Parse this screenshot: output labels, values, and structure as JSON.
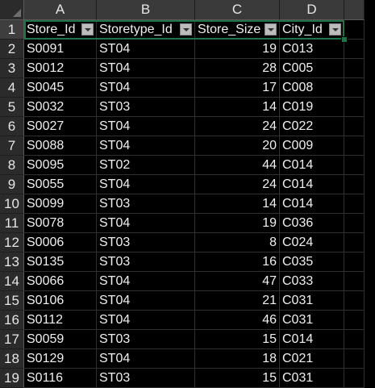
{
  "columns": [
    "A",
    "B",
    "C",
    "D"
  ],
  "header_row": {
    "row_number": "1",
    "cells": [
      "Store_Id",
      "Storetype_Id",
      "Store_Size",
      "City_Id"
    ]
  },
  "rows": [
    {
      "n": "2",
      "store_id": "S0091",
      "storetype_id": "ST04",
      "store_size": "19",
      "city_id": "C013"
    },
    {
      "n": "3",
      "store_id": "S0012",
      "storetype_id": "ST04",
      "store_size": "28",
      "city_id": "C005"
    },
    {
      "n": "4",
      "store_id": "S0045",
      "storetype_id": "ST04",
      "store_size": "17",
      "city_id": "C008"
    },
    {
      "n": "5",
      "store_id": "S0032",
      "storetype_id": "ST03",
      "store_size": "14",
      "city_id": "C019"
    },
    {
      "n": "6",
      "store_id": "S0027",
      "storetype_id": "ST04",
      "store_size": "24",
      "city_id": "C022"
    },
    {
      "n": "7",
      "store_id": "S0088",
      "storetype_id": "ST04",
      "store_size": "20",
      "city_id": "C009"
    },
    {
      "n": "8",
      "store_id": "S0095",
      "storetype_id": "ST02",
      "store_size": "44",
      "city_id": "C014"
    },
    {
      "n": "9",
      "store_id": "S0055",
      "storetype_id": "ST04",
      "store_size": "24",
      "city_id": "C014"
    },
    {
      "n": "10",
      "store_id": "S0099",
      "storetype_id": "ST03",
      "store_size": "14",
      "city_id": "C014"
    },
    {
      "n": "11",
      "store_id": "S0078",
      "storetype_id": "ST04",
      "store_size": "19",
      "city_id": "C036"
    },
    {
      "n": "12",
      "store_id": "S0006",
      "storetype_id": "ST03",
      "store_size": "8",
      "city_id": "C024"
    },
    {
      "n": "13",
      "store_id": "S0135",
      "storetype_id": "ST03",
      "store_size": "16",
      "city_id": "C035"
    },
    {
      "n": "14",
      "store_id": "S0066",
      "storetype_id": "ST04",
      "store_size": "47",
      "city_id": "C033"
    },
    {
      "n": "15",
      "store_id": "S0106",
      "storetype_id": "ST04",
      "store_size": "21",
      "city_id": "C031"
    },
    {
      "n": "16",
      "store_id": "S0112",
      "storetype_id": "ST04",
      "store_size": "46",
      "city_id": "C031"
    },
    {
      "n": "17",
      "store_id": "S0059",
      "storetype_id": "ST03",
      "store_size": "15",
      "city_id": "C014"
    },
    {
      "n": "18",
      "store_id": "S0129",
      "storetype_id": "ST04",
      "store_size": "18",
      "city_id": "C021"
    },
    {
      "n": "19",
      "store_id": "S0116",
      "storetype_id": "ST03",
      "store_size": "15",
      "city_id": "C031"
    }
  ],
  "colors": {
    "selection": "#217346",
    "background": "#000000",
    "gridline": "#303030"
  },
  "icons": {
    "filter": "filter-dropdown-icon"
  }
}
